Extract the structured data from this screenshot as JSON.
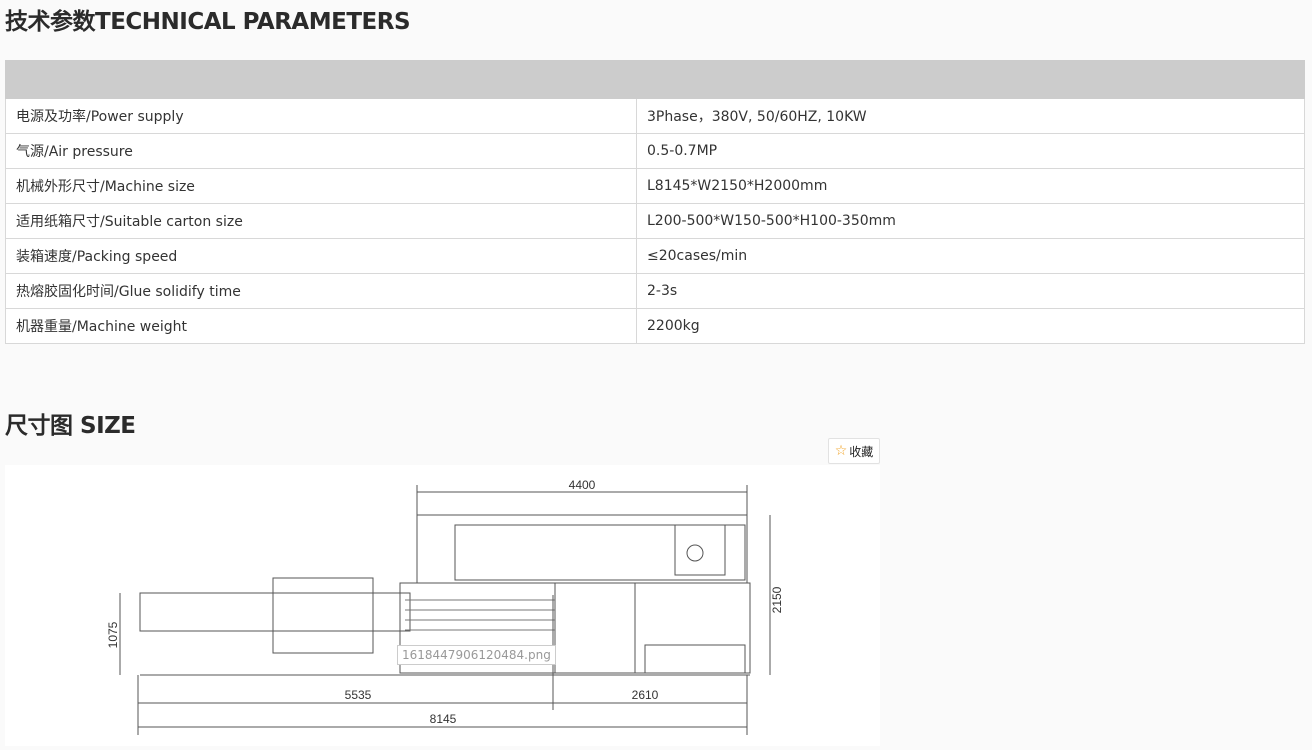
{
  "section1": {
    "title": "技术参数TECHNICAL PARAMETERS"
  },
  "params": [
    {
      "label": "电源及功率/Power supply",
      "value": "3Phase，380V, 50/60HZ, 10KW"
    },
    {
      "label": "气源/Air pressure",
      "value": " 0.5-0.7MP"
    },
    {
      "label": "机械外形尺寸/Machine size",
      "value": "L8145*W2150*H2000mm"
    },
    {
      "label": "适用纸箱尺寸/Suitable carton size",
      "value": "L200-500*W150-500*H100-350mm"
    },
    {
      "label": "装箱速度/Packing speed",
      "value": "≤20cases/min"
    },
    {
      "label": "热熔胶固化时间/Glue solidify time",
      "value": "2-3s"
    },
    {
      "label": "机器重量/Machine weight",
      "value": "2200kg"
    }
  ],
  "section2": {
    "title": "尺寸图 SIZE"
  },
  "favorite": {
    "label": "收藏",
    "icon": "star-icon"
  },
  "drawing": {
    "filename": "1618447906120484.png",
    "dims": {
      "top": "4400",
      "right": "2150",
      "left": "1075",
      "bottom_left": "5535",
      "bottom_right": "2610",
      "total": "8145"
    }
  }
}
